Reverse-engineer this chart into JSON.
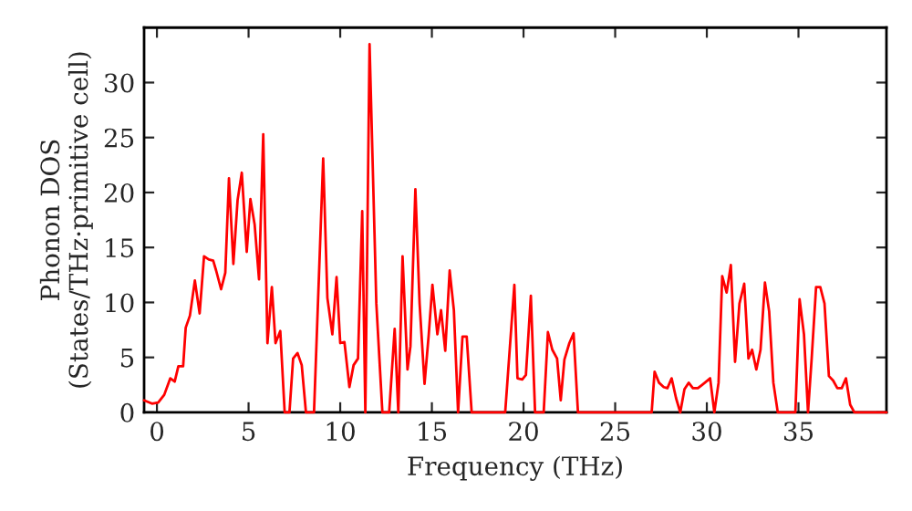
{
  "chart_data": {
    "type": "line",
    "xlabel": "Frequency (THz)",
    "ylabel": "Phonon DOS\n(States/THz·primitive cell)",
    "x": [
      -0.7,
      -0.27,
      0.07,
      0.4,
      0.73,
      0.97,
      1.17,
      1.43,
      1.57,
      1.8,
      2.07,
      2.33,
      2.57,
      2.83,
      3.07,
      3.23,
      3.5,
      3.73,
      3.93,
      4.17,
      4.4,
      4.63,
      4.9,
      5.1,
      5.33,
      5.57,
      5.8,
      6.03,
      6.27,
      6.47,
      6.73,
      6.97,
      7.23,
      7.43,
      7.67,
      7.9,
      8.13,
      8.57,
      9.07,
      9.3,
      9.57,
      9.8,
      10.0,
      10.23,
      10.5,
      10.73,
      10.97,
      11.2,
      11.37,
      11.6,
      11.97,
      12.3,
      12.67,
      12.97,
      13.17,
      13.4,
      13.67,
      13.83,
      14.1,
      14.33,
      14.6,
      14.83,
      15.03,
      15.3,
      15.5,
      15.73,
      15.97,
      16.2,
      16.43,
      16.67,
      16.9,
      17.17,
      19.0,
      19.5,
      19.67,
      19.93,
      20.13,
      20.4,
      20.63,
      21.1,
      21.33,
      21.57,
      21.83,
      22.03,
      22.23,
      22.5,
      22.73,
      22.97,
      26.99,
      27.15,
      27.39,
      27.65,
      27.85,
      28.08,
      28.32,
      28.55,
      28.78,
      29.01,
      29.24,
      29.51,
      29.74,
      30.18,
      30.41,
      30.64,
      30.84,
      31.08,
      31.31,
      31.54,
      31.78,
      32.04,
      32.27,
      32.47,
      32.7,
      32.93,
      33.17,
      33.4,
      33.63,
      33.87,
      34.83,
      35.06,
      35.3,
      35.52,
      35.72,
      35.96,
      36.19,
      36.42,
      36.66,
      36.89,
      37.12,
      37.36,
      37.59,
      37.82,
      38.05,
      39.8
    ],
    "series": [
      {
        "color": "#ff0000",
        "values": [
          1.1,
          0.8,
          0.9,
          1.6,
          3.1,
          2.8,
          4.2,
          4.2,
          7.7,
          8.8,
          12,
          9,
          14.2,
          13.9,
          13.8,
          12.9,
          11.2,
          12.7,
          21.3,
          13.5,
          19.3,
          21.8,
          14.6,
          19.4,
          17.1,
          12.1,
          25.3,
          6.3,
          11.4,
          6.3,
          7.4,
          0,
          0,
          4.9,
          5.4,
          4.3,
          0,
          0,
          23.1,
          10.4,
          7.1,
          12.3,
          6.3,
          6.4,
          2.3,
          4.3,
          4.9,
          18.3,
          0,
          33.5,
          9.9,
          0,
          0,
          7.6,
          0,
          14.2,
          3.9,
          6,
          20.3,
          9.9,
          2.6,
          7.1,
          11.6,
          7.1,
          9.3,
          5.6,
          12.9,
          9.3,
          0,
          6.9,
          6.9,
          0,
          0,
          11.6,
          3.1,
          3,
          3.4,
          10.6,
          0,
          0,
          7.3,
          5.7,
          4.9,
          1.1,
          4.8,
          6.3,
          7.2,
          0,
          0,
          3.7,
          2.7,
          2.3,
          2.2,
          3.1,
          1.3,
          0,
          2.1,
          2.7,
          2.2,
          2.2,
          2.5,
          3.1,
          0,
          2.7,
          12.4,
          10.9,
          13.4,
          4.6,
          9.9,
          11.7,
          4.9,
          5.7,
          3.9,
          5.7,
          11.8,
          9.2,
          2.7,
          0,
          0,
          10.3,
          7.1,
          0,
          4.9,
          11.4,
          11.4,
          9.9,
          3.3,
          2.9,
          2.2,
          2.2,
          3.1,
          0.7,
          0,
          0
        ]
      }
    ],
    "xlim": [
      -0.7,
      39.8
    ],
    "ylim": [
      0,
      35
    ],
    "xticks": [
      0,
      5,
      10,
      15,
      20,
      25,
      30,
      35
    ],
    "yticks": [
      0,
      5,
      10,
      15,
      20,
      25,
      30
    ],
    "grid": false,
    "legend": false
  }
}
